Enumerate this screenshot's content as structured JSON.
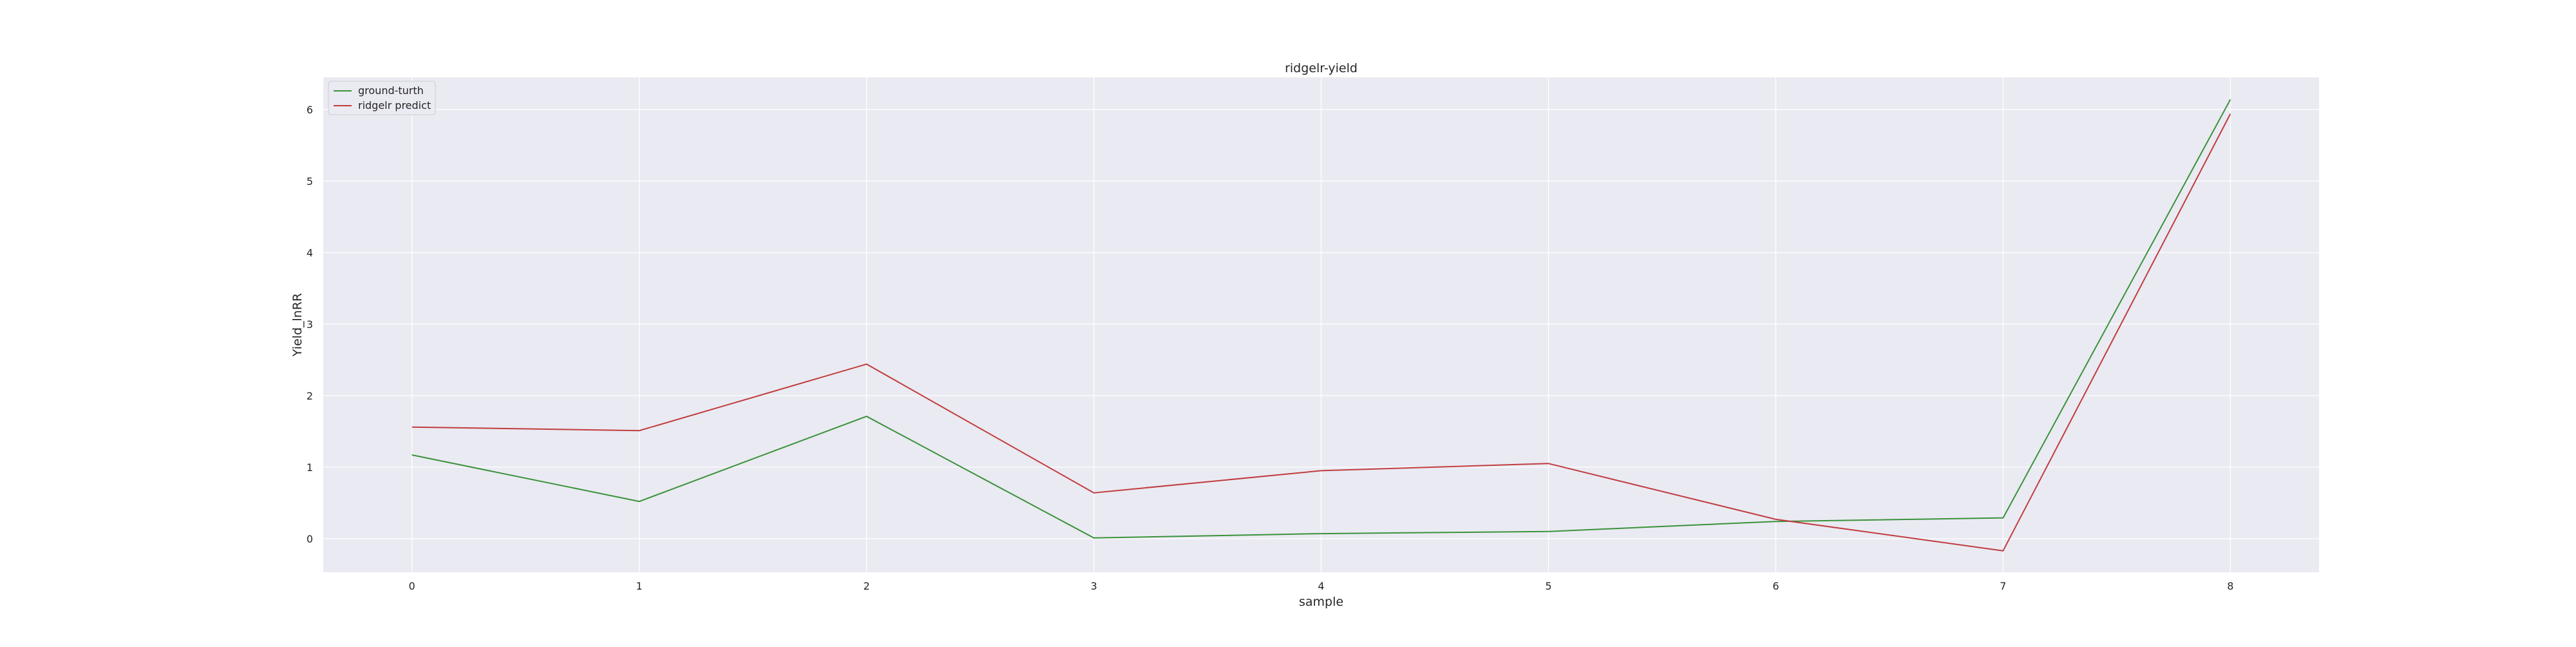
{
  "chart_data": {
    "type": "line",
    "title": "ridgelr-yield",
    "xlabel": "sample",
    "ylabel": "Yield_lnRR",
    "x": [
      0,
      1,
      2,
      3,
      4,
      5,
      6,
      7,
      8
    ],
    "xlim": [
      -0.39,
      8.39
    ],
    "ylim": [
      -0.47,
      6.45
    ],
    "xticks": [
      "0",
      "1",
      "2",
      "3",
      "4",
      "5",
      "6",
      "7",
      "8"
    ],
    "yticks": [
      "0",
      "1",
      "2",
      "3",
      "4",
      "5",
      "6"
    ],
    "grid": true,
    "legend_position": "top-left",
    "series": [
      {
        "name": "ground-turth",
        "color": "#3a923a",
        "values": [
          1.17,
          0.52,
          1.71,
          0.01,
          0.07,
          0.1,
          0.24,
          0.29,
          6.14
        ]
      },
      {
        "name": "ridgelr predict",
        "color": "#c03d3e",
        "values": [
          1.56,
          1.51,
          2.44,
          0.64,
          0.95,
          1.05,
          0.27,
          -0.17,
          5.94
        ]
      }
    ],
    "colors": {
      "axes_background": "#eaeaf2",
      "grid": "#ffffff",
      "text": "#262626"
    }
  }
}
